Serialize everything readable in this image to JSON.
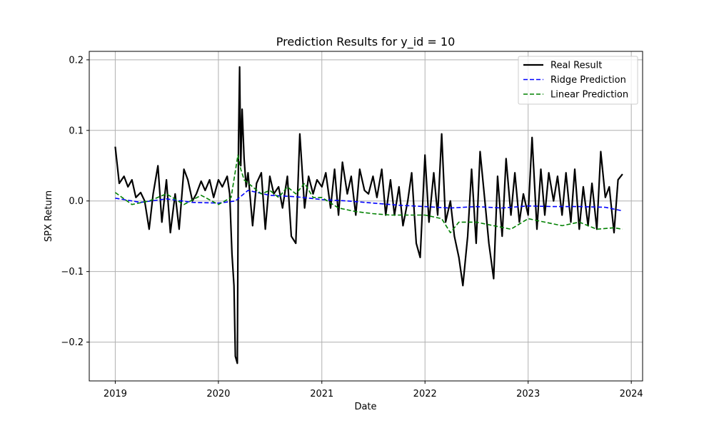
{
  "chart_data": {
    "type": "line",
    "title": "Prediction Results for y_id = 10",
    "xlabel": "Date",
    "ylabel": "SPX Return",
    "xlim": [
      "2018-10-01",
      "2024-02-10"
    ],
    "ylim": [
      -0.255,
      0.212
    ],
    "x_ticks": [
      "2019-01-01",
      "2020-01-01",
      "2021-01-01",
      "2022-01-01",
      "2023-01-01",
      "2024-01-01"
    ],
    "x_tick_labels": [
      "2019",
      "2020",
      "2021",
      "2022",
      "2023",
      "2024"
    ],
    "y_ticks": [
      -0.2,
      -0.1,
      0.0,
      0.1,
      0.2
    ],
    "y_tick_labels": [
      "−0.2",
      "−0.1",
      "0.0",
      "0.1",
      "0.2"
    ],
    "grid": true,
    "legend_position": "top-right",
    "series": [
      {
        "name": "Real Result",
        "color": "#000000",
        "style": "solid",
        "x": [
          "2019-01-01",
          "2019-01-15",
          "2019-02-01",
          "2019-02-15",
          "2019-03-01",
          "2019-03-15",
          "2019-04-01",
          "2019-04-15",
          "2019-05-01",
          "2019-05-15",
          "2019-06-01",
          "2019-06-15",
          "2019-07-01",
          "2019-07-15",
          "2019-08-01",
          "2019-08-15",
          "2019-09-01",
          "2019-09-15",
          "2019-10-01",
          "2019-10-15",
          "2019-11-01",
          "2019-11-15",
          "2019-12-01",
          "2019-12-15",
          "2020-01-01",
          "2020-01-15",
          "2020-02-01",
          "2020-02-10",
          "2020-02-18",
          "2020-02-25",
          "2020-03-01",
          "2020-03-08",
          "2020-03-12",
          "2020-03-16",
          "2020-03-20",
          "2020-03-25",
          "2020-04-01",
          "2020-04-08",
          "2020-04-15",
          "2020-05-01",
          "2020-05-15",
          "2020-06-01",
          "2020-06-15",
          "2020-07-01",
          "2020-07-15",
          "2020-08-01",
          "2020-08-15",
          "2020-09-01",
          "2020-09-15",
          "2020-10-01",
          "2020-10-15",
          "2020-11-01",
          "2020-11-15",
          "2020-12-01",
          "2020-12-15",
          "2021-01-01",
          "2021-01-15",
          "2021-02-01",
          "2021-02-15",
          "2021-03-01",
          "2021-03-15",
          "2021-04-01",
          "2021-04-15",
          "2021-05-01",
          "2021-05-15",
          "2021-06-01",
          "2021-06-15",
          "2021-07-01",
          "2021-07-15",
          "2021-08-01",
          "2021-08-15",
          "2021-09-01",
          "2021-09-15",
          "2021-10-01",
          "2021-10-15",
          "2021-11-01",
          "2021-11-15",
          "2021-12-01",
          "2021-12-15",
          "2022-01-01",
          "2022-01-15",
          "2022-02-01",
          "2022-02-15",
          "2022-03-01",
          "2022-03-15",
          "2022-04-01",
          "2022-04-15",
          "2022-05-01",
          "2022-05-15",
          "2022-06-01",
          "2022-06-15",
          "2022-07-01",
          "2022-07-15",
          "2022-08-01",
          "2022-08-15",
          "2022-09-01",
          "2022-09-15",
          "2022-10-01",
          "2022-10-15",
          "2022-11-01",
          "2022-11-15",
          "2022-12-01",
          "2022-12-15",
          "2023-01-01",
          "2023-01-15",
          "2023-02-01",
          "2023-02-15",
          "2023-03-01",
          "2023-03-15",
          "2023-04-01",
          "2023-04-15",
          "2023-05-01",
          "2023-05-15",
          "2023-06-01",
          "2023-06-15",
          "2023-07-01",
          "2023-07-15",
          "2023-08-01",
          "2023-08-15",
          "2023-09-01",
          "2023-09-15",
          "2023-10-01",
          "2023-10-15",
          "2023-11-01",
          "2023-11-15",
          "2023-12-01"
        ],
        "y": [
          0.077,
          0.025,
          0.035,
          0.02,
          0.03,
          0.005,
          0.012,
          0.0,
          -0.04,
          0.01,
          0.05,
          -0.03,
          0.03,
          -0.045,
          0.01,
          -0.04,
          0.045,
          0.03,
          0.0,
          0.01,
          0.028,
          0.015,
          0.03,
          0.005,
          0.03,
          0.02,
          0.035,
          0.01,
          -0.075,
          -0.12,
          -0.22,
          -0.23,
          0.08,
          0.19,
          0.05,
          0.13,
          0.06,
          0.02,
          0.04,
          -0.035,
          0.025,
          0.04,
          -0.04,
          0.035,
          0.01,
          0.02,
          -0.01,
          0.035,
          -0.05,
          -0.06,
          0.095,
          -0.01,
          0.035,
          0.01,
          0.03,
          0.02,
          0.04,
          -0.01,
          0.045,
          -0.02,
          0.055,
          0.01,
          0.035,
          -0.02,
          0.045,
          0.015,
          0.01,
          0.035,
          0.005,
          0.045,
          -0.02,
          0.03,
          -0.02,
          0.02,
          -0.035,
          0.0,
          0.04,
          -0.06,
          -0.08,
          0.065,
          -0.03,
          0.04,
          -0.02,
          0.095,
          -0.03,
          0.0,
          -0.05,
          -0.08,
          -0.12,
          -0.05,
          0.045,
          -0.06,
          0.07,
          0.0,
          -0.06,
          -0.11,
          0.035,
          -0.05,
          0.06,
          -0.02,
          0.04,
          -0.03,
          0.01,
          -0.02,
          0.09,
          -0.04,
          0.045,
          -0.02,
          0.04,
          0.0,
          0.035,
          -0.02,
          0.04,
          -0.03,
          0.045,
          -0.04,
          0.02,
          -0.035,
          0.025,
          -0.04,
          0.07,
          0.005,
          0.02,
          -0.045,
          0.03,
          0.038
        ]
      },
      {
        "name": "Ridge Prediction",
        "color": "#0000ff",
        "style": "dashed",
        "x": [
          "2019-01-01",
          "2019-04-01",
          "2019-07-01",
          "2019-10-01",
          "2020-01-01",
          "2020-03-01",
          "2020-04-15",
          "2020-07-01",
          "2020-10-01",
          "2021-01-01",
          "2021-04-01",
          "2021-07-01",
          "2021-10-01",
          "2022-01-01",
          "2022-04-01",
          "2022-07-01",
          "2022-10-01",
          "2023-01-01",
          "2023-04-01",
          "2023-07-01",
          "2023-10-01",
          "2023-12-01"
        ],
        "y": [
          0.004,
          -0.002,
          0.003,
          -0.002,
          -0.003,
          0.0,
          0.015,
          0.008,
          0.006,
          0.002,
          0.0,
          -0.003,
          -0.006,
          -0.008,
          -0.01,
          -0.008,
          -0.01,
          -0.007,
          -0.008,
          -0.008,
          -0.009,
          -0.014
        ]
      },
      {
        "name": "Linear Prediction",
        "color": "#008000",
        "style": "dashed",
        "x": [
          "2019-01-01",
          "2019-03-01",
          "2019-05-01",
          "2019-07-01",
          "2019-09-01",
          "2019-11-01",
          "2020-01-01",
          "2020-02-15",
          "2020-03-10",
          "2020-03-20",
          "2020-04-01",
          "2020-05-01",
          "2020-06-01",
          "2020-07-01",
          "2020-08-01",
          "2020-09-01",
          "2020-10-01",
          "2020-11-01",
          "2020-12-01",
          "2021-01-01",
          "2021-03-01",
          "2021-05-01",
          "2021-07-01",
          "2021-09-01",
          "2021-11-01",
          "2022-01-01",
          "2022-03-01",
          "2022-04-01",
          "2022-05-01",
          "2022-07-01",
          "2022-09-01",
          "2022-11-01",
          "2023-01-01",
          "2023-03-01",
          "2023-05-01",
          "2023-07-01",
          "2023-09-01",
          "2023-11-01",
          "2023-12-01"
        ],
        "y": [
          0.012,
          -0.005,
          0.0,
          0.01,
          -0.005,
          0.008,
          -0.005,
          0.005,
          0.065,
          0.045,
          0.03,
          0.02,
          0.01,
          0.015,
          0.005,
          0.02,
          0.01,
          0.025,
          0.005,
          0.005,
          -0.01,
          -0.015,
          -0.018,
          -0.02,
          -0.02,
          -0.02,
          -0.025,
          -0.045,
          -0.03,
          -0.03,
          -0.035,
          -0.04,
          -0.025,
          -0.03,
          -0.035,
          -0.03,
          -0.04,
          -0.038,
          -0.04
        ]
      }
    ]
  }
}
